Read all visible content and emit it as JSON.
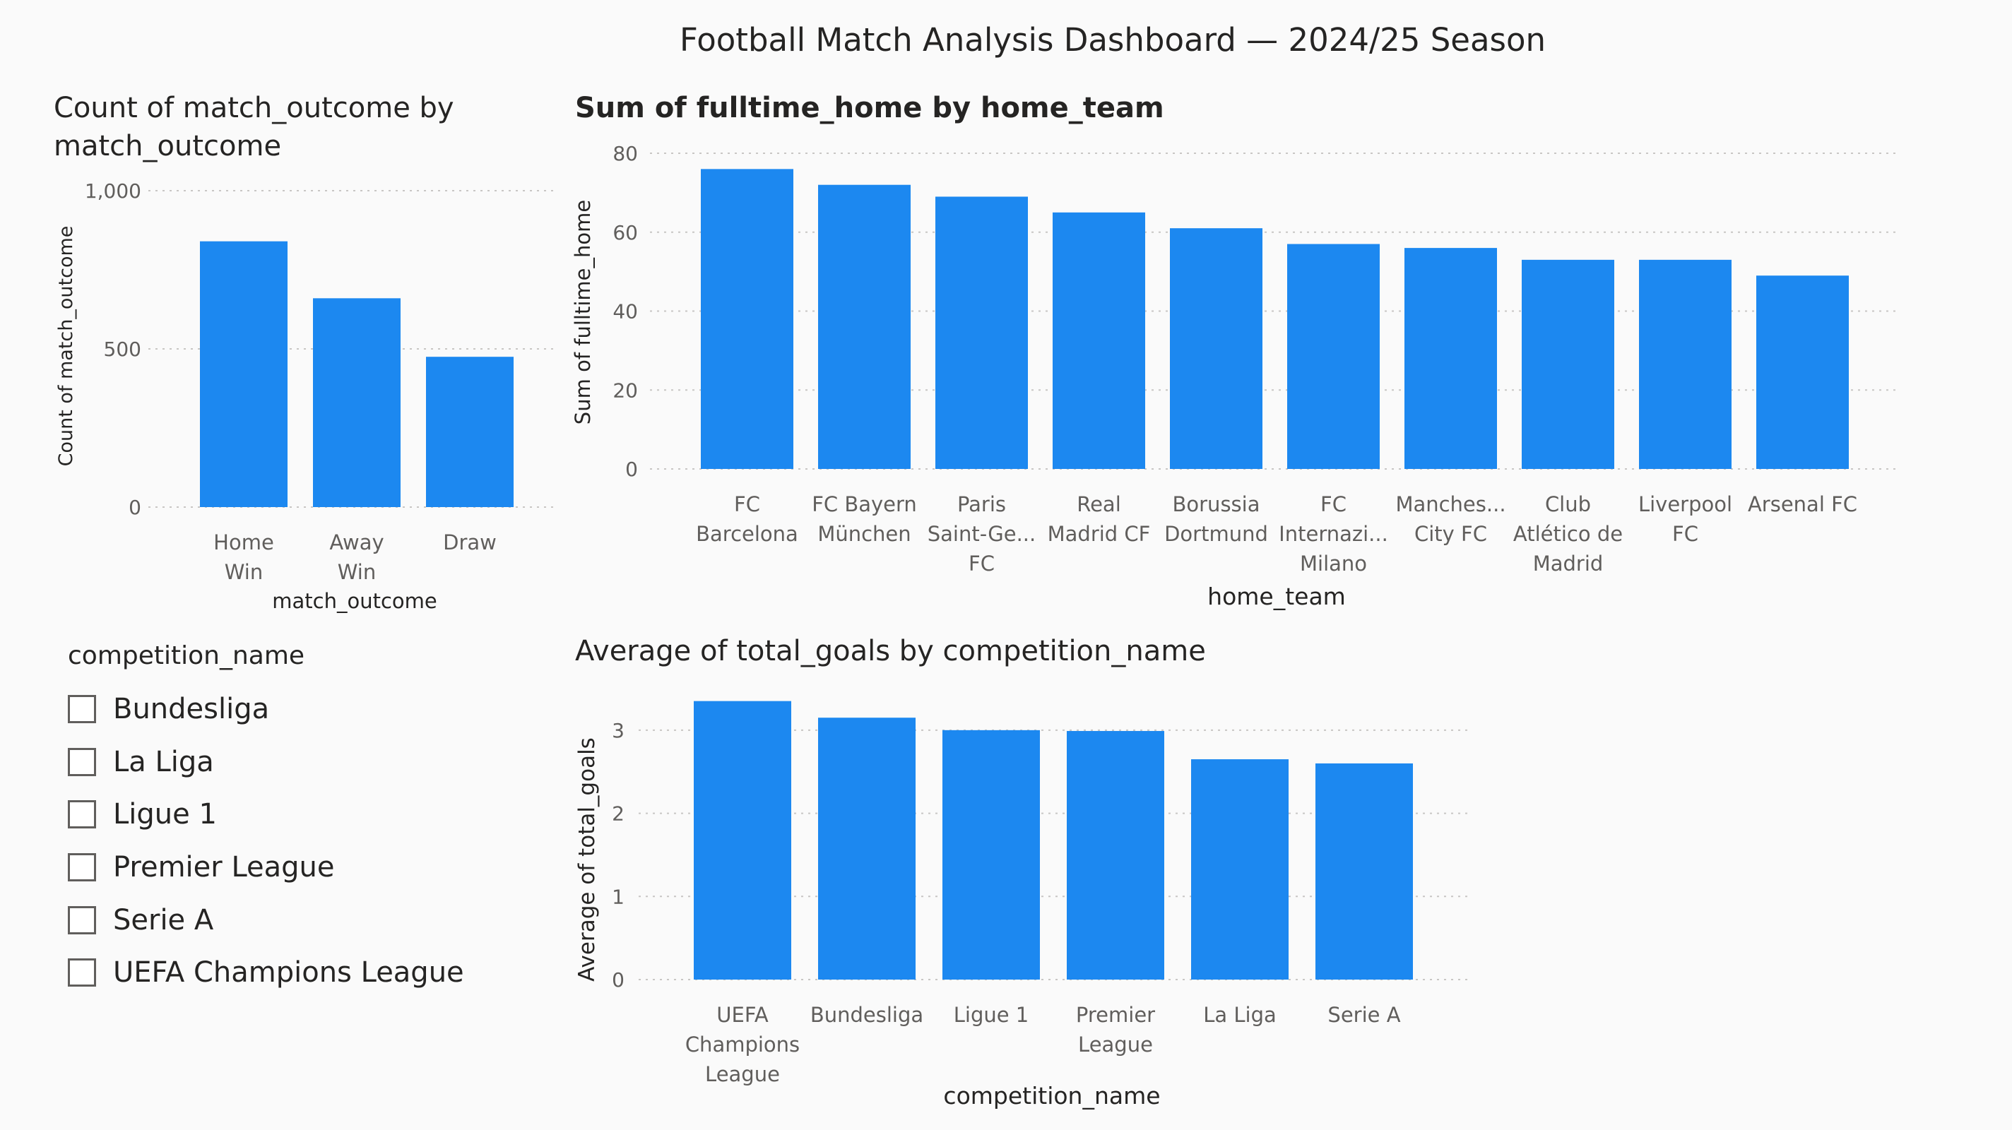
{
  "page": {
    "title": "Football Match Analysis Dashboard — 2024/25 Season",
    "bar_color": "#1c88f0",
    "grid_color": "#c8c6c4"
  },
  "outcome_chart": {
    "title": "Count of match_outcome by match_outcome"
  },
  "home_chart": {
    "title": "Sum of fulltime_home by home_team"
  },
  "goals_chart": {
    "title": "Average of total_goals by competition_name"
  },
  "slicer": {
    "header": "competition_name",
    "items": [
      {
        "label": "Bundesliga",
        "checked": false
      },
      {
        "label": "La Liga",
        "checked": false
      },
      {
        "label": "Ligue 1",
        "checked": false
      },
      {
        "label": "Premier League",
        "checked": false
      },
      {
        "label": "Serie A",
        "checked": false
      },
      {
        "label": "UEFA Champions League",
        "checked": false
      }
    ]
  },
  "chart_data": [
    {
      "type": "bar",
      "title": "Count of match_outcome by match_outcome",
      "xlabel": "match_outcome",
      "ylabel": "Count of match_outcome",
      "categories": [
        [
          "Home",
          "Win"
        ],
        [
          "Away",
          "Win"
        ],
        [
          "Draw"
        ]
      ],
      "values": [
        840,
        660,
        475
      ],
      "ylim": [
        0,
        1000
      ],
      "yticks": [
        0,
        500,
        1000
      ],
      "ytick_labels": [
        "0",
        "500",
        "1,000"
      ],
      "grid": true
    },
    {
      "type": "bar",
      "title": "Sum of fulltime_home by home_team",
      "xlabel": "home_team",
      "ylabel": "Sum of fulltime_home",
      "categories": [
        [
          "FC",
          "Barcelona"
        ],
        [
          "FC Bayern",
          "München"
        ],
        [
          "Paris",
          "Saint-Ge...",
          "FC"
        ],
        [
          "Real",
          "Madrid CF"
        ],
        [
          "Borussia",
          "Dortmund"
        ],
        [
          "FC",
          "Internazi...",
          "Milano"
        ],
        [
          "Manches...",
          "City FC"
        ],
        [
          "Club",
          "Atlético de",
          "Madrid"
        ],
        [
          "Liverpool",
          "FC"
        ],
        [
          "Arsenal FC"
        ]
      ],
      "values": [
        76,
        72,
        69,
        65,
        61,
        57,
        56,
        53,
        53,
        49
      ],
      "ylim": [
        0,
        80
      ],
      "yticks": [
        0,
        20,
        40,
        60,
        80
      ],
      "ytick_labels": [
        "0",
        "20",
        "40",
        "60",
        "80"
      ],
      "grid": true
    },
    {
      "type": "bar",
      "title": "Average of total_goals by competition_name",
      "xlabel": "competition_name",
      "ylabel": "Average of total_goals",
      "categories": [
        [
          "UEFA",
          "Champions",
          "League"
        ],
        [
          "Bundesliga"
        ],
        [
          "Ligue 1"
        ],
        [
          "Premier",
          "League"
        ],
        [
          "La Liga"
        ],
        [
          "Serie A"
        ]
      ],
      "values": [
        3.35,
        3.15,
        3.0,
        2.99,
        2.65,
        2.6
      ],
      "ylim": [
        0,
        3.5
      ],
      "yticks": [
        0,
        1,
        2,
        3
      ],
      "ytick_labels": [
        "0",
        "1",
        "2",
        "3"
      ],
      "grid": true
    }
  ]
}
